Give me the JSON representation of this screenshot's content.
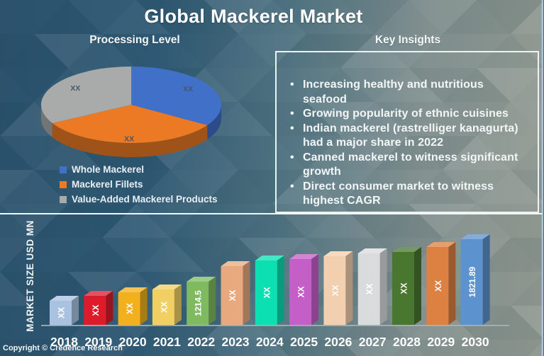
{
  "title": "Global Mackerel Market",
  "footer": {
    "copyright": "Copyright © Credence Research"
  },
  "insights": {
    "title": "Key Insights",
    "bullets": [
      "Increasing healthy and nutritious seafood",
      "Growing popularity of ethnic cuisines",
      "Indian mackerel (rastrelliger kanagurta) had a major share in 2022",
      "Canned mackerel to witness significant growth",
      "Direct consumer market to witness highest CAGR"
    ]
  },
  "chart_data": [
    {
      "type": "pie",
      "style": "3d",
      "title": "Processing Level",
      "labels": [
        "Whole Mackerel",
        "Mackerel Fillets",
        "Value-Added Mackerel Products"
      ],
      "values_pct": [
        34,
        33,
        33
      ],
      "data_labels": [
        "XX",
        "XX",
        "XX"
      ],
      "colors": [
        "#4170c9",
        "#ec7a25",
        "#a9abab"
      ],
      "legend_position": "bottom-left",
      "label_color": "#47586a"
    },
    {
      "type": "bar",
      "style": "3d",
      "title": "",
      "xlabel": "",
      "ylabel": "MARKET SIZE USD MN",
      "categories": [
        "2018",
        "2019",
        "2020",
        "2021",
        "2022",
        "2023",
        "2024",
        "2025",
        "2026",
        "2027",
        "2028",
        "2029",
        "2030"
      ],
      "bar_labels": [
        "XX",
        "XX",
        "XX",
        "XX",
        "1214.5",
        "XX",
        "XX",
        "XX",
        "XX",
        "XX",
        "XX",
        "XX",
        "1821.89"
      ],
      "known_values": {
        "2022": 1214.5,
        "2030": 1821.89
      },
      "relative_heights": [
        34,
        41,
        46,
        50,
        61,
        83,
        91,
        93,
        97,
        101,
        103,
        110,
        121
      ],
      "colors": [
        "#a9c2df",
        "#dc1c2a",
        "#f2b01e",
        "#f2cf63",
        "#7fba60",
        "#e8a97e",
        "#0cdfb2",
        "#c55fc8",
        "#f2cfae",
        "#d9dcdd",
        "#4a7730",
        "#dd8142",
        "#5c92ce"
      ],
      "axis_color": "#aab6b9",
      "value_label_color": "#ffffff",
      "grid": false
    }
  ],
  "background": {
    "left_color": "#2c526c",
    "right_color": "#90988f",
    "pattern": "triangle-mosaic"
  }
}
